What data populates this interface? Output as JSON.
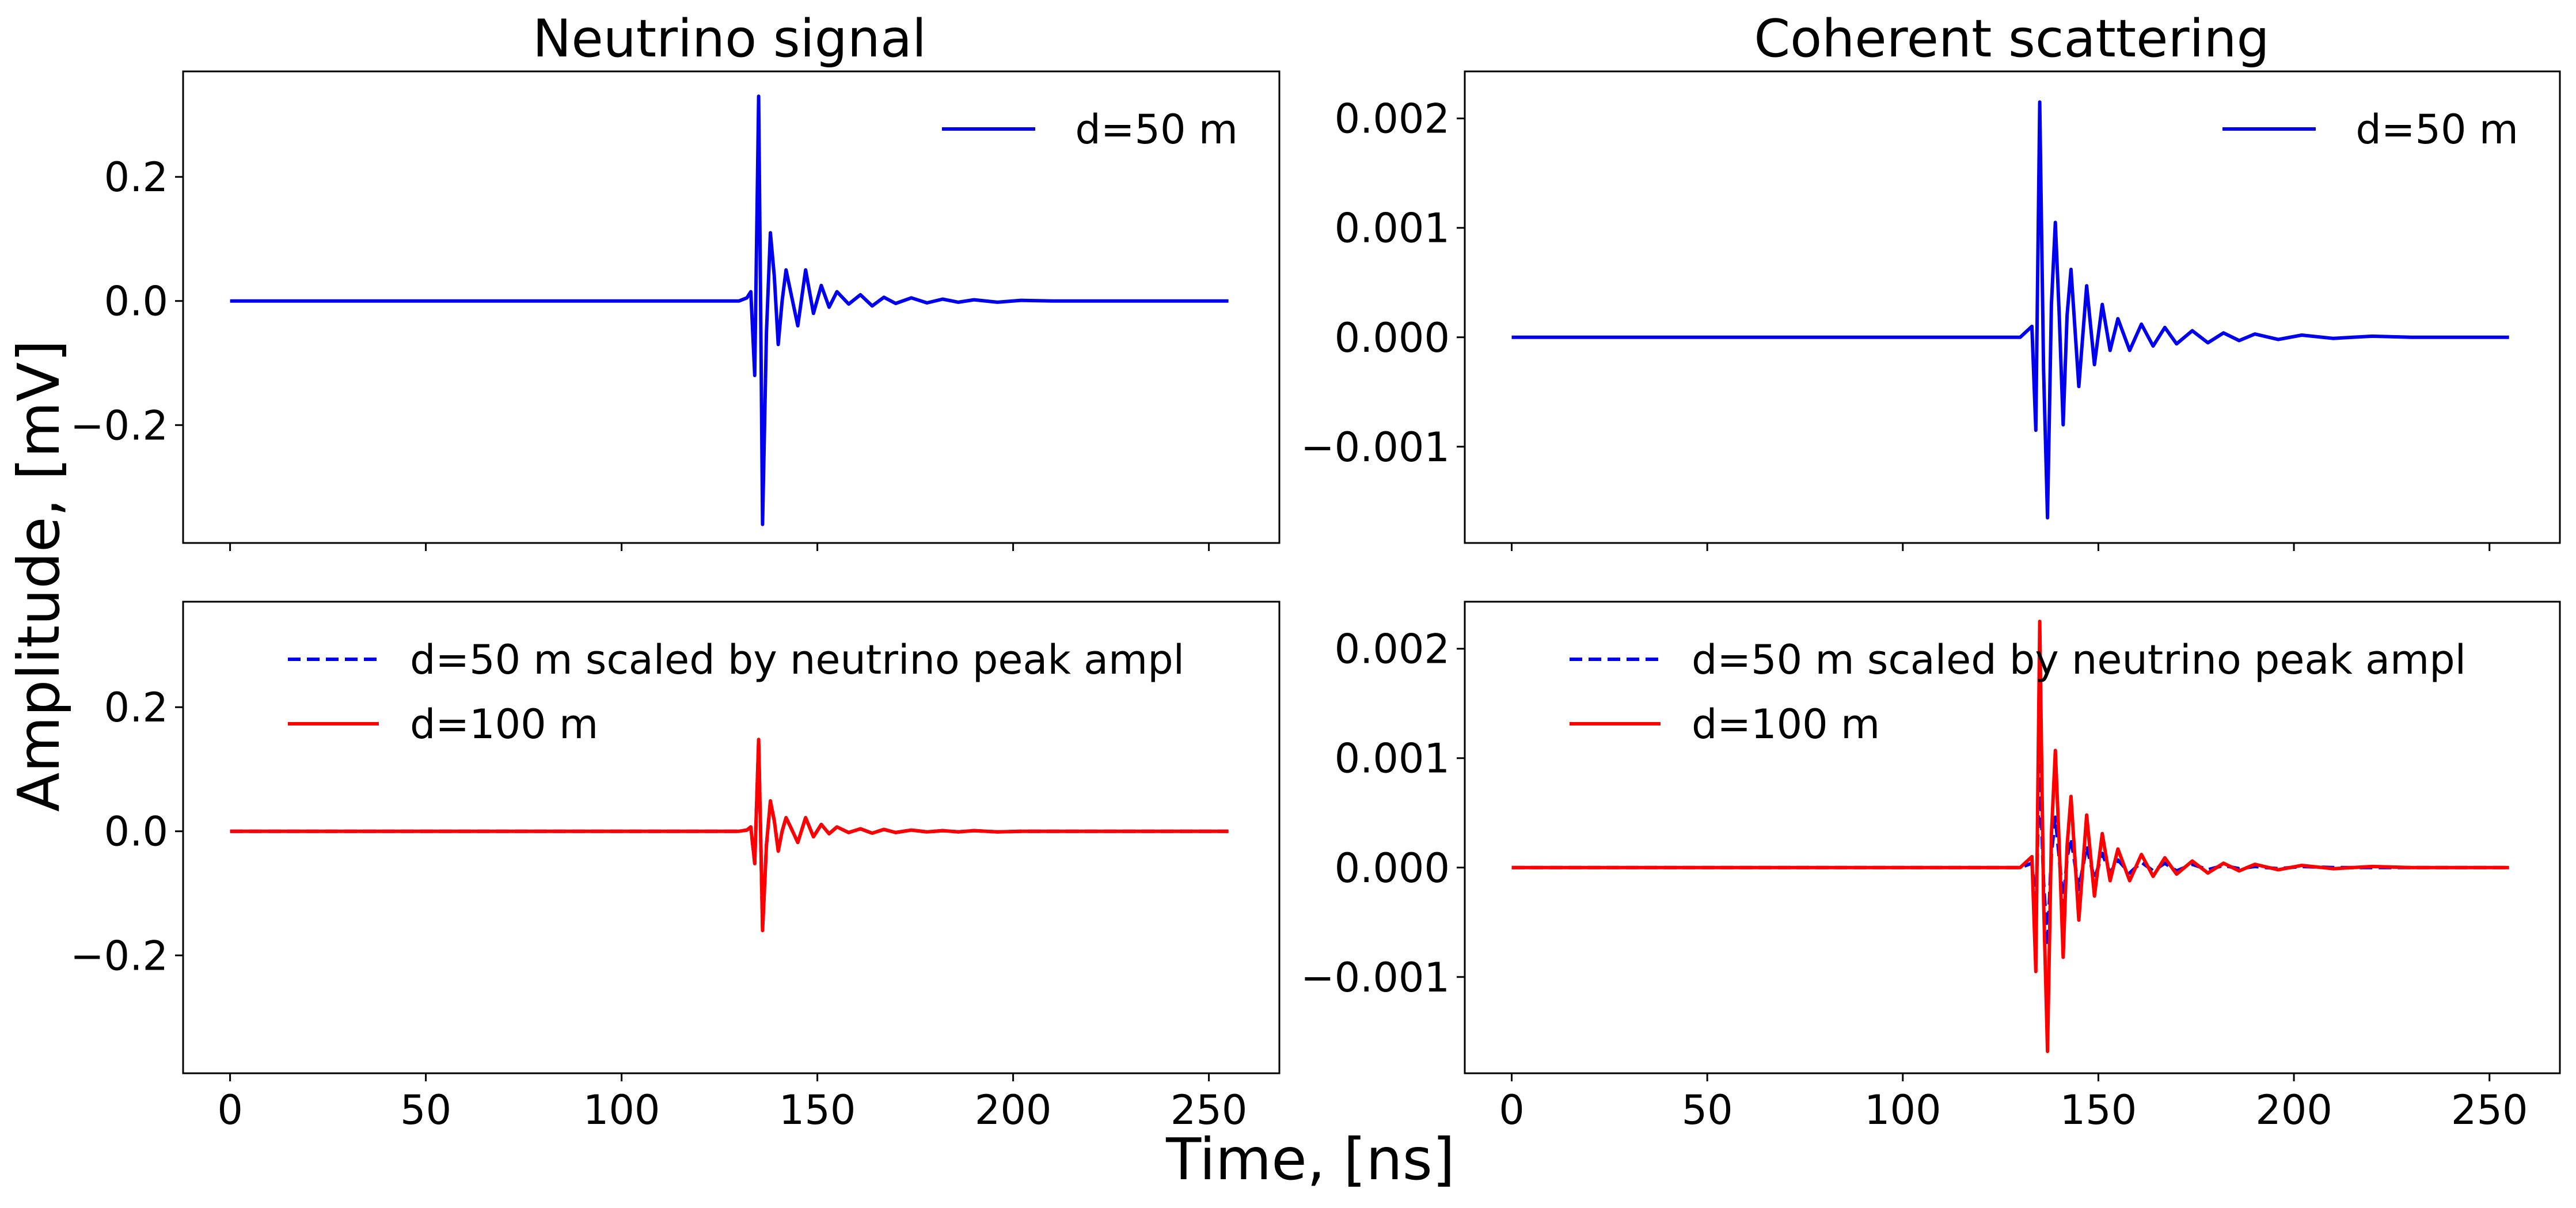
{
  "figure": {
    "xlabel": "Time, [ns]",
    "ylabel": "Amplitude, [mV]",
    "col_titles": [
      "Neutrino signal",
      "Coherent scattering"
    ]
  },
  "colors": {
    "blue": "#0000ee",
    "red": "#ff0000",
    "axes": "#000000"
  },
  "chart_data": [
    {
      "id": "neutrino_top",
      "type": "line",
      "title": "Neutrino signal",
      "xlim": [
        -12,
        268
      ],
      "ylim": [
        -0.39,
        0.37
      ],
      "xticks": [
        0,
        50,
        100,
        150,
        200,
        250
      ],
      "show_xtick_labels": false,
      "yticks": [
        -0.2,
        0.0,
        0.2
      ],
      "ytick_labels": [
        "−0.2",
        "0.0",
        "0.2"
      ],
      "legend_position": "upper right",
      "series": [
        {
          "name": "d=50 m",
          "color": "blue",
          "style": "solid",
          "x": [
            0,
            20,
            40,
            60,
            80,
            100,
            120,
            130,
            132,
            133,
            134,
            135,
            135.5,
            136,
            137,
            138,
            139,
            140,
            141,
            142,
            143,
            145,
            147,
            149,
            151,
            153,
            155,
            158,
            161,
            164,
            167,
            170,
            174,
            178,
            182,
            186,
            190,
            196,
            202,
            210,
            220,
            230,
            240,
            250,
            255
          ],
          "y": [
            0,
            0,
            0,
            0,
            0,
            0,
            0,
            0,
            0.005,
            0.015,
            -0.12,
            0.33,
            0,
            -0.36,
            -0.05,
            0.11,
            0.04,
            -0.07,
            0.0,
            0.05,
            0.02,
            -0.04,
            0.05,
            -0.02,
            0.025,
            -0.01,
            0.015,
            -0.005,
            0.01,
            -0.008,
            0.006,
            -0.004,
            0.005,
            -0.003,
            0.003,
            -0.002,
            0.002,
            -0.002,
            0.001,
            0,
            0,
            0,
            0,
            0,
            0
          ]
        }
      ]
    },
    {
      "id": "coherent_top",
      "type": "line",
      "xlim": [
        -12,
        268
      ],
      "ylim": [
        -0.00188,
        0.00243
      ],
      "xticks": [
        0,
        50,
        100,
        150,
        200,
        250
      ],
      "show_xtick_labels": false,
      "yticks": [
        -0.001,
        0.0,
        0.001,
        0.002
      ],
      "ytick_labels": [
        "−0.001",
        "0.000",
        "0.001",
        "0.002"
      ],
      "legend_position": "upper right",
      "series": [
        {
          "name": "d=50 m",
          "color": "blue",
          "style": "solid",
          "x": [
            0,
            20,
            40,
            60,
            80,
            100,
            120,
            130,
            133,
            134,
            135,
            136,
            137,
            138,
            139,
            140,
            141,
            142,
            143,
            145,
            147,
            149,
            151,
            153,
            155,
            158,
            161,
            164,
            167,
            170,
            174,
            178,
            182,
            186,
            190,
            196,
            202,
            210,
            220,
            230,
            240,
            250,
            255
          ],
          "y": [
            0,
            0,
            0,
            0,
            0,
            0,
            0,
            0,
            0.0001,
            -0.00085,
            0.00215,
            -0.0003,
            -0.00165,
            0.0003,
            0.00105,
            0.0002,
            -0.0008,
            0.0002,
            0.00062,
            -0.00045,
            0.00047,
            -0.00025,
            0.0003,
            -0.00012,
            0.00017,
            -0.00012,
            0.00012,
            -8e-05,
            9e-05,
            -6e-05,
            6e-05,
            -5e-05,
            4e-05,
            -3e-05,
            3e-05,
            -2e-05,
            2e-05,
            -1e-05,
            1e-05,
            0,
            0,
            0,
            0
          ]
        }
      ]
    },
    {
      "id": "neutrino_bottom",
      "type": "line",
      "xlabel": "",
      "xlim": [
        -12,
        268
      ],
      "ylim": [
        -0.39,
        0.37
      ],
      "xticks": [
        0,
        50,
        100,
        150,
        200,
        250
      ],
      "show_xtick_labels": true,
      "yticks": [
        -0.2,
        0.0,
        0.2
      ],
      "ytick_labels": [
        "−0.2",
        "0.0",
        "0.2"
      ],
      "legend_position": "upper left",
      "series": [
        {
          "name": "d=50 m scaled by neutrino peak ampl",
          "color": "blue",
          "style": "dashed",
          "x": [
            0,
            20,
            40,
            60,
            80,
            100,
            120,
            130,
            132,
            133,
            134,
            135,
            135.5,
            136,
            137,
            138,
            139,
            140,
            141,
            142,
            143,
            145,
            147,
            149,
            151,
            153,
            155,
            158,
            161,
            164,
            167,
            170,
            174,
            178,
            182,
            186,
            190,
            196,
            202,
            210,
            220,
            230,
            240,
            250,
            255
          ],
          "y": [
            0,
            0,
            0,
            0,
            0,
            0,
            0,
            0,
            0.002,
            0.007,
            -0.052,
            0.145,
            0,
            -0.158,
            -0.022,
            0.048,
            0.017,
            -0.031,
            0,
            0.022,
            0.009,
            -0.018,
            0.022,
            -0.009,
            0.011,
            -0.004,
            0.007,
            -0.002,
            0.004,
            -0.003,
            0.003,
            -0.002,
            0.002,
            -0.001,
            0.001,
            -0.001,
            0.001,
            -0.001,
            0,
            0,
            0,
            0,
            0,
            0,
            0
          ]
        },
        {
          "name": "d=100 m",
          "color": "red",
          "style": "solid",
          "x": [
            0,
            20,
            40,
            60,
            80,
            100,
            120,
            130,
            132,
            133,
            134,
            135,
            135.5,
            136,
            137,
            138,
            139,
            140,
            141,
            142,
            143,
            145,
            147,
            149,
            151,
            153,
            155,
            158,
            161,
            164,
            167,
            170,
            174,
            178,
            182,
            186,
            190,
            196,
            202,
            210,
            220,
            230,
            240,
            250,
            255
          ],
          "y": [
            0,
            0,
            0,
            0,
            0,
            0,
            0,
            0,
            0.002,
            0.007,
            -0.052,
            0.148,
            0,
            -0.16,
            -0.022,
            0.049,
            0.017,
            -0.032,
            0,
            0.022,
            0.009,
            -0.018,
            0.022,
            -0.009,
            0.011,
            -0.004,
            0.007,
            -0.002,
            0.004,
            -0.003,
            0.003,
            -0.002,
            0.002,
            -0.001,
            0.001,
            -0.001,
            0.001,
            -0.001,
            0,
            0,
            0,
            0,
            0,
            0,
            0
          ]
        }
      ]
    },
    {
      "id": "coherent_bottom",
      "type": "line",
      "xlim": [
        -12,
        268
      ],
      "ylim": [
        -0.00188,
        0.00243
      ],
      "xticks": [
        0,
        50,
        100,
        150,
        200,
        250
      ],
      "show_xtick_labels": true,
      "yticks": [
        -0.001,
        0.0,
        0.001,
        0.002
      ],
      "ytick_labels": [
        "−0.001",
        "0.000",
        "0.001",
        "0.002"
      ],
      "legend_position": "upper left",
      "series": [
        {
          "name": "d=50 m scaled by neutrino peak ampl",
          "color": "blue",
          "style": "dashed",
          "x": [
            0,
            20,
            40,
            60,
            80,
            100,
            120,
            130,
            133,
            134,
            135,
            136,
            137,
            138,
            139,
            140,
            141,
            142,
            143,
            145,
            147,
            149,
            151,
            153,
            155,
            158,
            161,
            164,
            167,
            170,
            174,
            178,
            182,
            186,
            190,
            196,
            202,
            210,
            220,
            230,
            240,
            250,
            255
          ],
          "y": [
            0,
            0,
            0,
            0,
            0,
            0,
            0,
            0,
            4e-05,
            -0.00037,
            0.00093,
            -0.00013,
            -0.00072,
            0.00013,
            0.00046,
            9e-05,
            -0.00035,
            9e-05,
            0.00027,
            -0.0002,
            0.0002,
            -0.00011,
            0.00013,
            -5e-05,
            7e-05,
            -5e-05,
            5e-05,
            -3e-05,
            4e-05,
            -3e-05,
            3e-05,
            -2e-05,
            2e-05,
            -1e-05,
            1e-05,
            -1e-05,
            1e-05,
            0,
            0,
            0,
            0,
            0,
            0
          ]
        },
        {
          "name": "d=100 m",
          "color": "red",
          "style": "solid",
          "x": [
            0,
            20,
            40,
            60,
            80,
            100,
            120,
            130,
            133,
            134,
            135,
            136,
            137,
            138,
            139,
            140,
            141,
            142,
            143,
            145,
            147,
            149,
            151,
            153,
            155,
            158,
            161,
            164,
            167,
            170,
            174,
            178,
            182,
            186,
            190,
            196,
            202,
            210,
            220,
            230,
            240,
            250,
            255
          ],
          "y": [
            0,
            0,
            0,
            0,
            0,
            0,
            0,
            0,
            0.0001,
            -0.00095,
            0.00225,
            -0.0003,
            -0.00168,
            0.0003,
            0.00107,
            0.0002,
            -0.00082,
            0.0002,
            0.00065,
            -0.00048,
            0.00048,
            -0.00026,
            0.00031,
            -0.00012,
            0.00017,
            -0.00012,
            0.00012,
            -8e-05,
            9e-05,
            -6e-05,
            6e-05,
            -5e-05,
            4e-05,
            -3e-05,
            3e-05,
            -2e-05,
            2e-05,
            -1e-05,
            1e-05,
            0,
            0,
            0,
            0
          ]
        }
      ]
    }
  ]
}
